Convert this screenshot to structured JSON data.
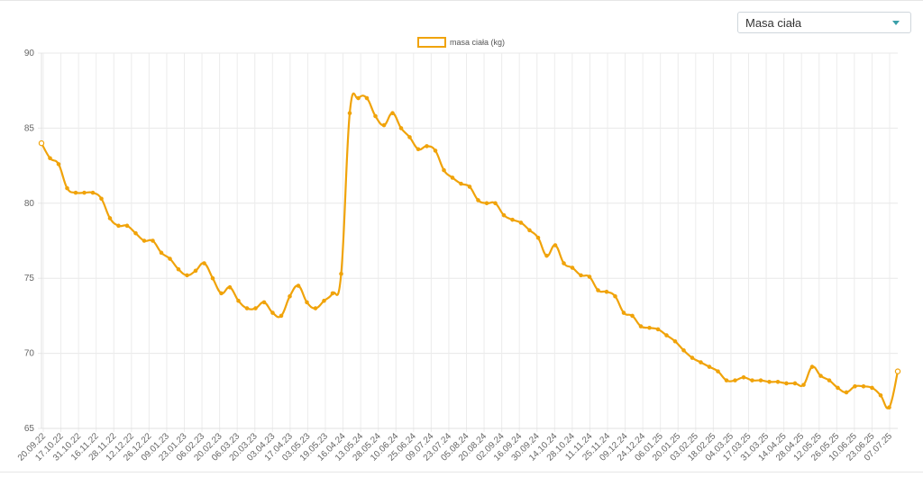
{
  "selector": {
    "selected": "Masa ciała",
    "icon": "chevron-down-icon"
  },
  "chart_data": {
    "type": "line",
    "title": "",
    "xlabel": "",
    "ylabel": "",
    "legend": {
      "position": "top-center"
    },
    "grid": true,
    "ylim": [
      65,
      90
    ],
    "yticks": [
      65,
      70,
      75,
      80,
      85,
      90
    ],
    "xticks": [
      "20.09.22",
      "17.10.22",
      "31.10.22",
      "16.11.22",
      "28.11.22",
      "12.12.22",
      "26.12.22",
      "09.01.23",
      "23.01.23",
      "06.02.23",
      "20.02.23",
      "06.03.23",
      "20.03.23",
      "03.04.23",
      "17.04.23",
      "03.05.23",
      "19.05.23",
      "16.04.24",
      "13.05.24",
      "28.05.24",
      "10.06.24",
      "25.06.24",
      "09.07.24",
      "23.07.24",
      "05.08.24",
      "20.08.24",
      "02.09.24",
      "16.09.24",
      "30.09.24",
      "14.10.24",
      "28.10.24",
      "11.11.24",
      "25.11.24",
      "09.12.24",
      "24.12.24",
      "06.01.25",
      "20.01.25",
      "03.02.25",
      "18.02.25",
      "04.03.25",
      "17.03.25",
      "31.03.25",
      "14.04.25",
      "28.04.25",
      "12.05.25",
      "26.05.25",
      "10.06.25",
      "23.06.25",
      "07.07.25"
    ],
    "series": [
      {
        "name": "masa ciała (kg)",
        "color": "#f0a30a",
        "values": [
          84.0,
          83.0,
          82.6,
          81.0,
          80.7,
          80.7,
          80.7,
          80.3,
          79.0,
          78.5,
          78.5,
          78.0,
          77.5,
          77.5,
          76.7,
          76.3,
          75.6,
          75.2,
          75.5,
          76.0,
          75.0,
          74.0,
          74.4,
          73.5,
          73.0,
          73.0,
          73.4,
          72.7,
          72.5,
          73.8,
          74.5,
          73.4,
          73.0,
          73.5,
          74.0,
          75.3,
          86.0,
          87.0,
          87.0,
          85.8,
          85.2,
          86.0,
          85.0,
          84.4,
          83.6,
          83.8,
          83.5,
          82.2,
          81.7,
          81.3,
          81.1,
          80.2,
          80.0,
          80.0,
          79.2,
          78.9,
          78.7,
          78.2,
          77.7,
          76.5,
          77.2,
          76.0,
          75.7,
          75.2,
          75.1,
          74.2,
          74.1,
          73.8,
          72.7,
          72.5,
          71.8,
          71.7,
          71.6,
          71.2,
          70.8,
          70.2,
          69.7,
          69.4,
          69.1,
          68.8,
          68.2,
          68.2,
          68.4,
          68.2,
          68.2,
          68.1,
          68.1,
          68.0,
          68.0,
          67.9,
          69.1,
          68.5,
          68.2,
          67.7,
          67.4,
          67.8,
          67.8,
          67.7,
          67.2,
          66.4,
          68.8
        ]
      }
    ]
  }
}
